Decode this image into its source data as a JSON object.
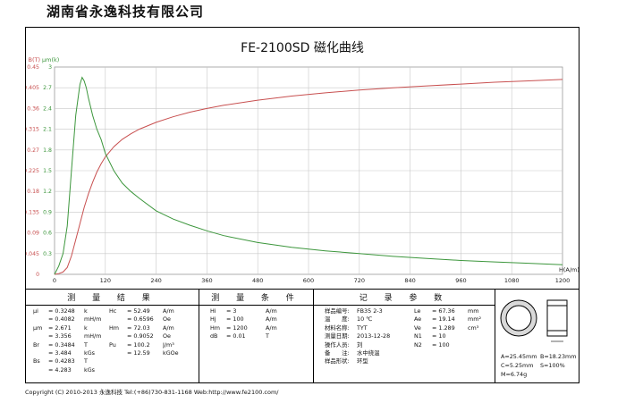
{
  "company": "湖南省永逸科技有限公司",
  "colors": {
    "b_curve": "#c85050",
    "mu_curve": "#3c963c",
    "grid": "#c8c8c8",
    "frame": "#000000"
  },
  "chart_data": {
    "type": "line",
    "title": "FE-2100SD 磁化曲线",
    "xlabel": "H(A/m)",
    "ylabel_left": "B(T)",
    "ylabel_right": "μm(k)",
    "xlim": [
      0,
      1200
    ],
    "ylim_left": [
      0,
      0.45
    ],
    "ylim_right": [
      0,
      3
    ],
    "x_ticks": [
      "0",
      "120",
      "240",
      "360",
      "480",
      "600",
      "720",
      "840",
      "960",
      "1080",
      "1200"
    ],
    "y_left_ticks": [
      "0",
      "0.045",
      "0.09",
      "0.135",
      "0.18",
      "0.225",
      "0.27",
      "0.315",
      "0.36",
      "0.405",
      "0.45"
    ],
    "y_right_ticks": [
      "0.3",
      "0.6",
      "0.9",
      "1.2",
      "1.5",
      "1.8",
      "2.1",
      "2.4",
      "2.7",
      "3"
    ],
    "grid": true,
    "series": [
      {
        "axis": "left",
        "color": "#c85050",
        "x": [
          0,
          10,
          20,
          30,
          40,
          50,
          60,
          70,
          80,
          90,
          100,
          110,
          120,
          140,
          160,
          180,
          200,
          240,
          280,
          320,
          360,
          400,
          480,
          560,
          640,
          720,
          800,
          880,
          960,
          1040,
          1120,
          1200
        ],
        "y": [
          0,
          0.0015,
          0.005,
          0.015,
          0.04,
          0.075,
          0.11,
          0.145,
          0.175,
          0.2,
          0.222,
          0.24,
          0.255,
          0.277,
          0.293,
          0.305,
          0.315,
          0.33,
          0.342,
          0.352,
          0.36,
          0.367,
          0.378,
          0.387,
          0.394,
          0.4,
          0.405,
          0.409,
          0.413,
          0.417,
          0.42,
          0.423
        ]
      },
      {
        "axis": "right",
        "color": "#3c963c",
        "x": [
          0,
          10,
          20,
          30,
          40,
          50,
          60,
          65,
          70,
          75,
          80,
          90,
          100,
          110,
          120,
          140,
          160,
          180,
          200,
          240,
          280,
          320,
          360,
          400,
          480,
          560,
          640,
          720,
          800,
          880,
          960,
          1040,
          1120,
          1200
        ],
        "y": [
          0,
          0.12,
          0.3,
          0.7,
          1.5,
          2.3,
          2.75,
          2.85,
          2.8,
          2.7,
          2.55,
          2.3,
          2.1,
          1.95,
          1.75,
          1.5,
          1.32,
          1.2,
          1.1,
          0.92,
          0.8,
          0.71,
          0.63,
          0.56,
          0.46,
          0.39,
          0.34,
          0.3,
          0.26,
          0.23,
          0.2,
          0.18,
          0.16,
          0.14
        ]
      }
    ]
  },
  "table": {
    "headers": {
      "results": "测 量 结 果",
      "conditions": "测 量 条 件",
      "record": "记 录 参 数"
    },
    "results": [
      {
        "a": "μi",
        "b": "= 0.3248",
        "c": "k",
        "d": "Hc",
        "e": "= 52.49",
        "f": "A/m"
      },
      {
        "a": "",
        "b": "= 0.4082",
        "c": "mH/m",
        "d": "",
        "e": "= 0.6596",
        "f": "Oe"
      },
      {
        "a": "μm",
        "b": "= 2.671",
        "c": "k",
        "d": "Hm",
        "e": "= 72.03",
        "f": "A/m"
      },
      {
        "a": "",
        "b": "= 3.356",
        "c": "mH/m",
        "d": "",
        "e": "= 0.9052",
        "f": "Oe"
      },
      {
        "a": "Br",
        "b": "= 0.3484",
        "c": "T",
        "d": "Pu",
        "e": "= 100.2",
        "f": "J/m³"
      },
      {
        "a": "",
        "b": "= 3.484",
        "c": "kGs",
        "d": "",
        "e": "= 12.59",
        "f": "kGOe"
      },
      {
        "a": "Bs",
        "b": "= 0.4283",
        "c": "T",
        "d": "",
        "e": "",
        "f": ""
      },
      {
        "a": "",
        "b": "= 4.283",
        "c": "kGs",
        "d": "",
        "e": "",
        "f": ""
      }
    ],
    "conditions": [
      {
        "a": "Hi",
        "b": "= 3",
        "c": "A/m"
      },
      {
        "a": "Hj",
        "b": "= 100",
        "c": "A/m"
      },
      {
        "a": "Hm",
        "b": "= 1200",
        "c": "A/m"
      },
      {
        "a": "dB",
        "b": "= 0.01",
        "c": "T"
      }
    ],
    "record": [
      {
        "a": "样品编号:",
        "b": "FB35 2-3",
        "c": "Le",
        "d": "= 67.36",
        "e": "mm"
      },
      {
        "a": "温　　度:",
        "b": "10 ℃",
        "c": "Ae",
        "d": "= 19.14",
        "e": "mm²"
      },
      {
        "a": "材料名称:",
        "b": "TYT",
        "c": "Ve",
        "d": "= 1.289",
        "e": "cm³"
      },
      {
        "a": "测量日期:",
        "b": "2013-12-28",
        "c": "N1",
        "d": "= 10",
        "e": ""
      },
      {
        "a": "操作人员:",
        "b": "刘",
        "c": "N2",
        "d": "= 100",
        "e": ""
      },
      {
        "a": "备　　注:",
        "b": "水中绕温",
        "c": "",
        "d": "",
        "e": ""
      },
      {
        "a": "样品形状:",
        "b": "环型",
        "c": "",
        "d": "",
        "e": ""
      }
    ],
    "dims": {
      "a": "A=25.45mm",
      "b": "B=18.23mm",
      "c": "C=5.25mm",
      "s": "S=100%",
      "m": "M=6.74g"
    }
  },
  "footer": "Copyright (C) 2010-2013 永逸科技  Tel:(+86)730-831-1168  Web:http://www.fe2100.com/"
}
